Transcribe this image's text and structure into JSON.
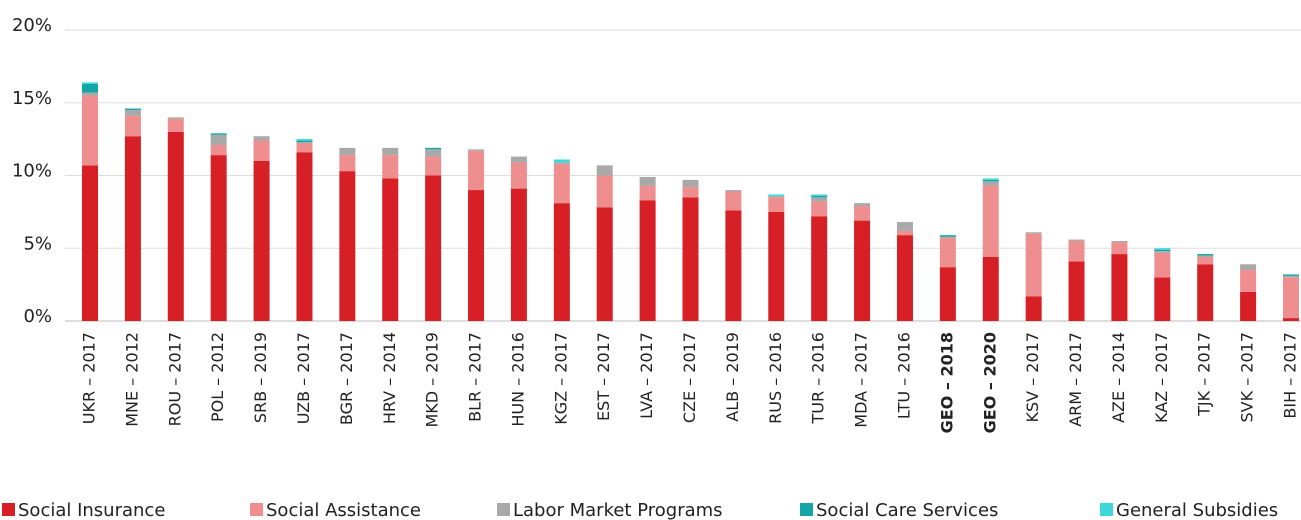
{
  "chart_data": {
    "type": "stacked_bar",
    "categories": [
      "UKR – 2017",
      "MNE – 2012",
      "ROU – 2017",
      "POL – 2012",
      "SRB – 2019",
      "UZB – 2017",
      "BGR – 2017",
      "HRV – 2014",
      "MKD – 2019",
      "BLR – 2017",
      "HUN – 2016",
      "KGZ – 2017",
      "EST – 2017",
      "LVA – 2017",
      "CZE – 2017",
      "ALB – 2019",
      "RUS – 2016",
      "TUR – 2016",
      "MDA – 2017",
      "LTU – 2016",
      "GEO – 2018",
      "GEO – 2020",
      "KSV – 2017",
      "ARM – 2017",
      "AZE – 2014",
      "KAZ – 2017",
      "TJK – 2017",
      "SVK – 2017",
      "BIH – 2017"
    ],
    "highlight_indices": [
      20,
      21
    ],
    "series": [
      {
        "name": "Social Insurance",
        "color": "#d71f26",
        "values": [
          10.7,
          12.7,
          13.0,
          11.4,
          11.0,
          11.6,
          10.3,
          9.8,
          10.0,
          9.0,
          9.1,
          8.1,
          7.8,
          8.3,
          8.5,
          7.6,
          7.5,
          7.2,
          6.9,
          5.9,
          3.7,
          4.4,
          1.7,
          4.1,
          4.6,
          3.0,
          3.9,
          2.0,
          0.2
        ]
      },
      {
        "name": "Social Assistance",
        "color": "#ee8e8f",
        "values": [
          4.8,
          1.4,
          0.9,
          0.7,
          1.4,
          0.6,
          1.1,
          1.6,
          1.3,
          2.7,
          1.8,
          2.7,
          2.2,
          1.0,
          0.7,
          1.3,
          1.0,
          1.0,
          1.0,
          0.3,
          2.0,
          4.9,
          4.3,
          1.4,
          0.8,
          1.7,
          0.5,
          1.5,
          2.8
        ]
      },
      {
        "name": "Labor Market Programs",
        "color": "#a9a9a9",
        "values": [
          0.2,
          0.4,
          0.1,
          0.7,
          0.3,
          0.1,
          0.5,
          0.5,
          0.5,
          0.1,
          0.4,
          0.1,
          0.7,
          0.6,
          0.5,
          0.1,
          0.1,
          0.3,
          0.2,
          0.6,
          0.1,
          0.3,
          0.1,
          0.1,
          0.1,
          0.1,
          0.1,
          0.4,
          0.1
        ]
      },
      {
        "name": "Social Care Services",
        "color": "#14a6a8",
        "values": [
          0.6,
          0.1,
          0,
          0.1,
          0,
          0.1,
          0,
          0,
          0.1,
          0,
          0,
          0,
          0,
          0,
          0,
          0,
          0,
          0.1,
          0,
          0,
          0.1,
          0.1,
          0,
          0,
          0,
          0.1,
          0.1,
          0,
          0.1
        ]
      },
      {
        "name": "General Subsidies",
        "color": "#3dd8d8",
        "values": [
          0.1,
          0,
          0,
          0,
          0,
          0.1,
          0,
          0,
          0,
          0,
          0,
          0.2,
          0,
          0,
          0,
          0,
          0.1,
          0.1,
          0,
          0,
          0,
          0.1,
          0,
          0,
          0,
          0.1,
          0,
          0,
          0
        ]
      }
    ],
    "ylim": [
      0,
      20
    ],
    "yticks": [
      {
        "value": 0,
        "label": "0%"
      },
      {
        "value": 5,
        "label": "5%"
      },
      {
        "value": 10,
        "label": "10%"
      },
      {
        "value": 15,
        "label": "15%"
      },
      {
        "value": 20,
        "label": "20%"
      }
    ],
    "grid": true
  }
}
